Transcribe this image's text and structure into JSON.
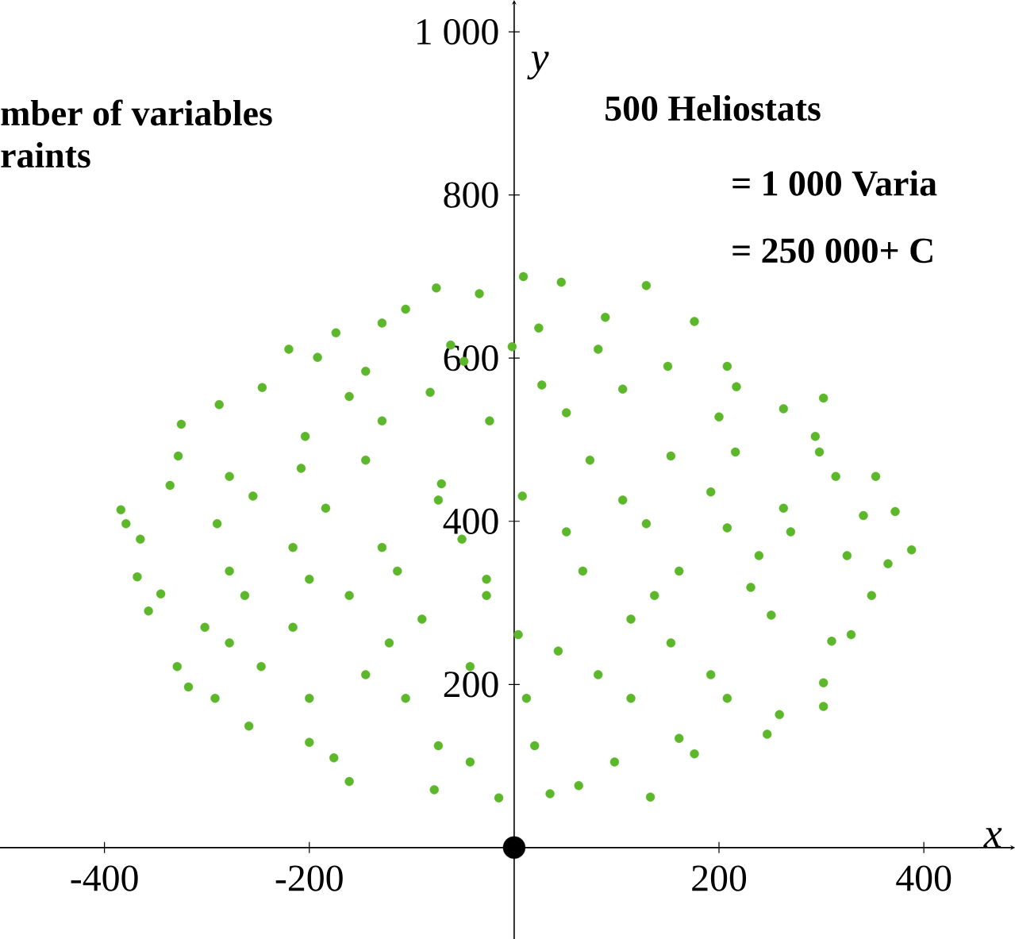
{
  "chart_data": {
    "type": "scatter",
    "xlabel": "x",
    "ylabel": "y",
    "annotations": [
      "mber of variables",
      "raints",
      "500 Heliostats",
      "= 1 000 Varia",
      "= 250 000+ C"
    ],
    "xlim": [
      -502,
      489
    ],
    "ylim": [
      -112,
      1039
    ],
    "xticks": [
      -400,
      -200,
      200,
      400
    ],
    "yticks": [
      200,
      400,
      600,
      800,
      {
        "value": 1000,
        "label": "1 000"
      }
    ],
    "grid": false,
    "series": [
      {
        "color": "#5cb82a",
        "x": [
          -76,
          9,
          46,
          129,
          -106,
          -34,
          89,
          176,
          -174,
          -129,
          24,
          -220,
          -192,
          -62,
          -2,
          82,
          150,
          208,
          -145,
          -49,
          -288,
          -325,
          -246,
          -161,
          -82,
          27,
          106,
          217,
          302,
          294,
          263,
          200,
          51,
          -24,
          -129,
          -204,
          -328,
          -384,
          -336,
          -278,
          -208,
          -145,
          -71,
          8,
          74,
          153,
          216,
          298,
          353,
          314,
          263,
          192,
          106,
          -74,
          -184,
          -255,
          -379,
          -365,
          -290,
          -216,
          -129,
          -51,
          51,
          129,
          208,
          270,
          341,
          372,
          388,
          325,
          239,
          161,
          67,
          -27,
          -114,
          -200,
          -278,
          -368,
          -345,
          -263,
          -161,
          -27,
          137,
          231,
          365,
          349,
          -357,
          -302,
          -216,
          -90,
          4,
          114,
          251,
          329,
          310,
          153,
          43,
          -122,
          -278,
          -329,
          -247,
          -145,
          -43,
          82,
          192,
          302,
          -318,
          -292,
          -200,
          -106,
          12,
          114,
          208,
          302,
          259,
          -259,
          -200,
          -74,
          20,
          161,
          247,
          -176,
          -43,
          98,
          176,
          -161,
          -78,
          -15,
          35,
          133,
          63
        ],
        "values": [
          686,
          700,
          693,
          689,
          660,
          679,
          650,
          645,
          631,
          643,
          637,
          611,
          601,
          616,
          614,
          611,
          590,
          590,
          584,
          596,
          543,
          519,
          564,
          553,
          558,
          567,
          562,
          565,
          551,
          504,
          538,
          528,
          533,
          523,
          523,
          504,
          480,
          414,
          444,
          455,
          465,
          475,
          446,
          431,
          475,
          480,
          485,
          485,
          455,
          455,
          416,
          436,
          426,
          426,
          416,
          431,
          397,
          378,
          397,
          368,
          368,
          378,
          387,
          397,
          392,
          387,
          407,
          412,
          365,
          358,
          358,
          339,
          339,
          329,
          339,
          329,
          339,
          332,
          311,
          309,
          309,
          309,
          309,
          319,
          348,
          309,
          290,
          270,
          270,
          280,
          261,
          280,
          285,
          261,
          253,
          251,
          241,
          251,
          251,
          222,
          222,
          212,
          222,
          212,
          212,
          202,
          197,
          183,
          183,
          183,
          183,
          183,
          183,
          173,
          163,
          149,
          129,
          125,
          125,
          134,
          139,
          110,
          105,
          105,
          115,
          81,
          71,
          61,
          66,
          62,
          76
        ]
      },
      {
        "color": "#000000",
        "x": [
          0
        ],
        "values": [
          0
        ]
      }
    ]
  }
}
